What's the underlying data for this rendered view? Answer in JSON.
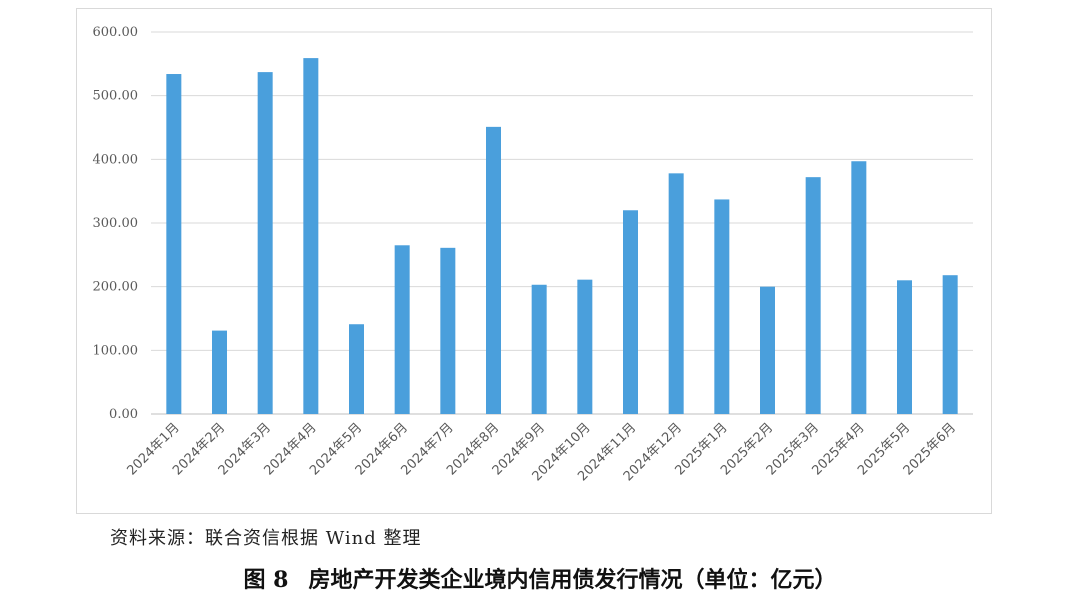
{
  "chart_data": {
    "type": "bar",
    "categories": [
      "2024年1月",
      "2024年2月",
      "2024年3月",
      "2024年4月",
      "2024年5月",
      "2024年6月",
      "2024年7月",
      "2024年8月",
      "2024年9月",
      "2024年10月",
      "2024年11月",
      "2024年12月",
      "2025年1月",
      "2025年2月",
      "2025年3月",
      "2025年4月",
      "2025年5月",
      "2025年6月"
    ],
    "values": [
      534,
      131,
      537,
      559,
      141,
      265,
      261,
      451,
      203,
      211,
      320,
      378,
      337,
      200,
      372,
      397,
      210,
      218
    ],
    "ylim": [
      0,
      600
    ],
    "yticks": [
      0,
      100,
      200,
      300,
      400,
      500,
      600
    ],
    "ytick_labels": [
      "0.00",
      "100.00",
      "200.00",
      "300.00",
      "400.00",
      "500.00",
      "600.00"
    ],
    "grid": true,
    "bar_color": "#4a9fdc",
    "title": "",
    "xlabel": "",
    "ylabel": ""
  },
  "source_note": "资料来源：联合资信根据 Wind 整理",
  "caption": {
    "number": "图 8",
    "text": "房地产开发类企业境内信用债发行情况（单位：亿元）"
  }
}
